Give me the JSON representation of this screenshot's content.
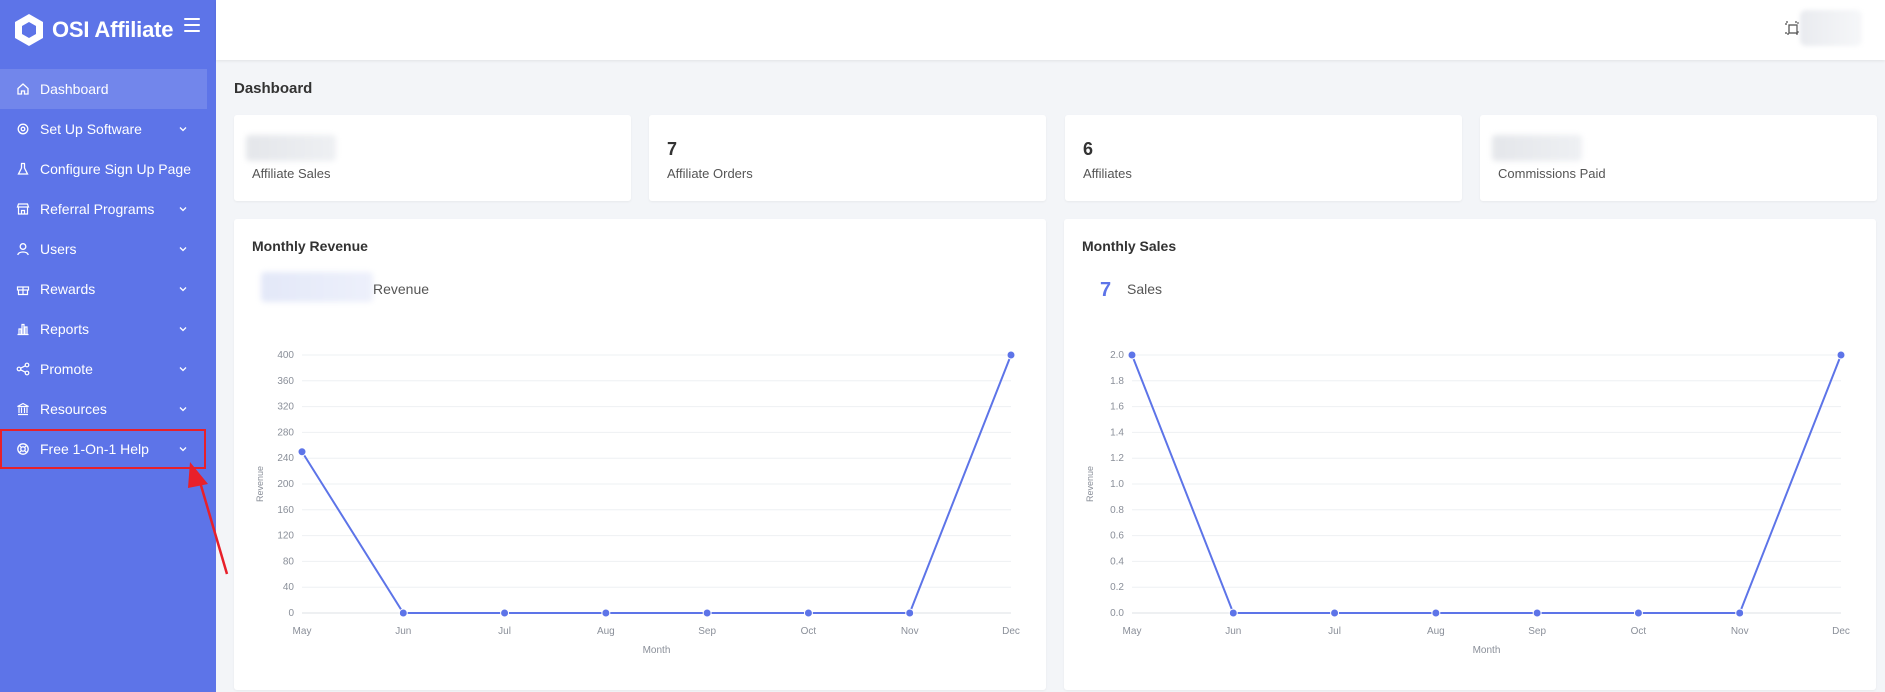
{
  "brand": {
    "name": "OSI Affiliate"
  },
  "sidebar": {
    "items": [
      {
        "label": "Dashboard",
        "icon": "home-icon",
        "active": true,
        "chevron": false
      },
      {
        "label": "Set Up Software",
        "icon": "gear-icon",
        "chevron": true
      },
      {
        "label": "Configure Sign Up Page",
        "icon": "flask-icon",
        "chevron": false
      },
      {
        "label": "Referral Programs",
        "icon": "store-icon",
        "chevron": true
      },
      {
        "label": "Users",
        "icon": "user-icon",
        "chevron": true
      },
      {
        "label": "Rewards",
        "icon": "gift-icon",
        "chevron": true
      },
      {
        "label": "Reports",
        "icon": "bar-chart-icon",
        "chevron": true
      },
      {
        "label": "Promote",
        "icon": "share-icon",
        "chevron": true
      },
      {
        "label": "Resources",
        "icon": "bank-icon",
        "chevron": true
      },
      {
        "label": "Free 1-On-1 Help",
        "icon": "lifebuoy-icon",
        "chevron": true,
        "highlighted": true
      }
    ]
  },
  "page": {
    "title": "Dashboard"
  },
  "stats": [
    {
      "value": "",
      "label": "Affiliate Sales"
    },
    {
      "value": "7",
      "label": "Affiliate Orders"
    },
    {
      "value": "6",
      "label": "Affiliates"
    },
    {
      "value": "",
      "label": "Commissions Paid"
    }
  ],
  "charts": [
    {
      "title": "Monthly Revenue",
      "summary_value": "",
      "summary_label": "Revenue"
    },
    {
      "title": "Monthly Sales",
      "summary_value": "7",
      "summary_label": "Sales"
    }
  ],
  "colors": {
    "sidebar": "#5d74e8",
    "accent": "#5d74e8",
    "highlight": "#e8202a"
  },
  "chart_data": [
    {
      "type": "line",
      "x": [
        "May",
        "Jun",
        "Jul",
        "Aug",
        "Sep",
        "Oct",
        "Nov",
        "Dec"
      ],
      "series": [
        {
          "values": [
            250,
            0,
            0,
            0,
            0,
            0,
            0,
            400
          ]
        }
      ],
      "xlabel": "Month",
      "ylabel": "Revenue",
      "ylim": [
        0,
        400
      ],
      "yticks": [
        "0",
        "40",
        "80",
        "120",
        "160",
        "200",
        "240",
        "280",
        "320",
        "360",
        "400"
      ],
      "grid": true
    },
    {
      "type": "line",
      "x": [
        "May",
        "Jun",
        "Jul",
        "Aug",
        "Sep",
        "Oct",
        "Nov",
        "Dec"
      ],
      "series": [
        {
          "values": [
            2,
            0,
            0,
            0,
            0,
            0,
            0,
            2
          ]
        }
      ],
      "xlabel": "Month",
      "ylabel": "Revenue",
      "ylim": [
        0,
        2
      ],
      "yticks": [
        "0.0",
        "0.2",
        "0.4",
        "0.6",
        "0.8",
        "1.0",
        "1.2",
        "1.4",
        "1.6",
        "1.8",
        "2.0"
      ],
      "grid": true
    }
  ]
}
